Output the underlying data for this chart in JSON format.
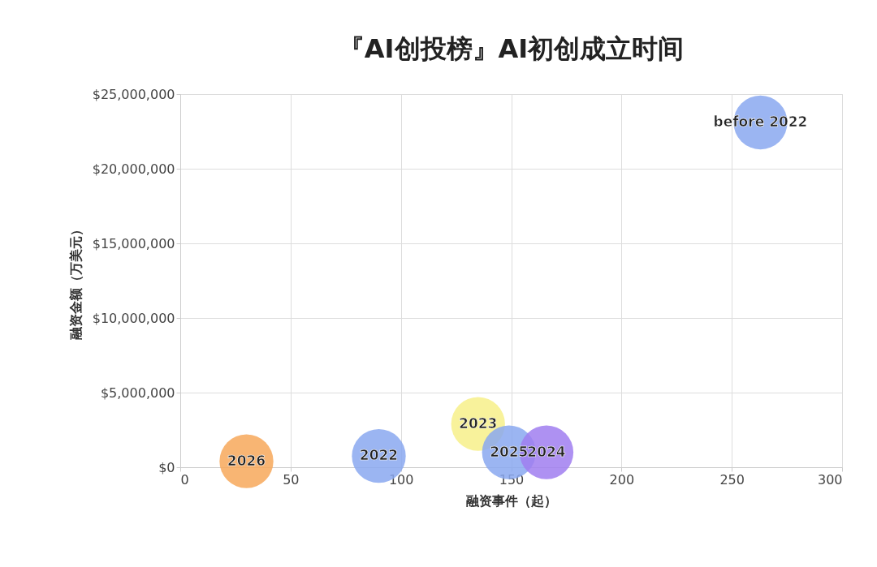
{
  "chart_data": {
    "type": "bubble",
    "title": "『AI创投榜』AI初创成立时间",
    "xlabel": "融资事件（起）",
    "ylabel": "融资金额（万美元）",
    "xlim": [
      0,
      300
    ],
    "xticks": [
      0,
      50,
      100,
      150,
      200,
      250,
      300
    ],
    "ylim": [
      0,
      25000000
    ],
    "yticks": [
      {
        "value": 0,
        "label": "$0"
      },
      {
        "value": 5000000,
        "label": "$5,000,000"
      },
      {
        "value": 10000000,
        "label": "$10,000,000"
      },
      {
        "value": 15000000,
        "label": "$15,000,000"
      },
      {
        "value": 20000000,
        "label": "$20,000,000"
      },
      {
        "value": 25000000,
        "label": "$25,000,000"
      }
    ],
    "grid": true,
    "legend": false,
    "series": [
      {
        "name": "2026",
        "color": "#f7a85a",
        "x": [
          30
        ],
        "values": [
          400000
        ],
        "sizes": [
          1
        ]
      },
      {
        "name": "2022",
        "color": "#8aa8f0",
        "x": [
          90
        ],
        "values": [
          750000
        ],
        "sizes": [
          1
        ]
      },
      {
        "name": "2023",
        "color": "#f7f08a",
        "x": [
          135
        ],
        "values": [
          2900000
        ],
        "sizes": [
          1
        ]
      },
      {
        "name": "2025",
        "color": "#8aa8f0",
        "x": [
          149
        ],
        "values": [
          1000000
        ],
        "sizes": [
          1
        ]
      },
      {
        "name": "2024",
        "color": "#a07ef0",
        "x": [
          166
        ],
        "values": [
          1000000
        ],
        "sizes": [
          1
        ]
      },
      {
        "name": "before 2022",
        "color": "#8aa8f0",
        "x": [
          263
        ],
        "values": [
          23100000
        ],
        "sizes": [
          1
        ]
      }
    ]
  }
}
